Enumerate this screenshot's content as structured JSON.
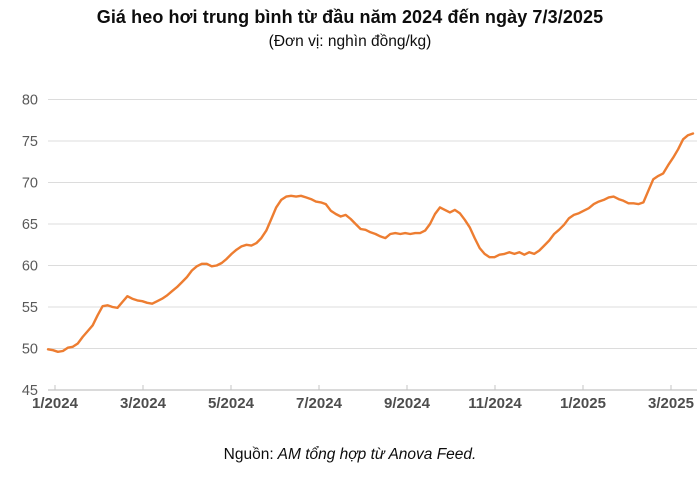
{
  "header": {
    "title": "Giá heo hơi trung bình từ đầu năm 2024 đến ngày 7/3/2025",
    "subtitle": "(Đơn vị: nghìn đồng/kg)"
  },
  "footer": {
    "label": "Nguồn:",
    "source": "AM tổng hợp từ Anova Feed."
  },
  "chart_data": {
    "type": "line",
    "title": "Giá heo hơi trung bình từ đầu năm 2024 đến ngày 7/3/2025",
    "unit": "nghìn đồng/kg",
    "period": {
      "from": "1/2024",
      "to": "7/3/2025"
    },
    "x_tick_labels": [
      "1/2024",
      "3/2024",
      "5/2024",
      "7/2024",
      "9/2024",
      "11/2024",
      "1/2025",
      "3/2025"
    ],
    "y_ticks": [
      45,
      50,
      55,
      60,
      65,
      70,
      75,
      80
    ],
    "ylim": [
      45,
      80
    ],
    "grid": "horizontal",
    "legend": "none",
    "line_color": "#ED7D31",
    "series": [
      {
        "name": "Giá heo hơi trung bình",
        "values": [
          49.9,
          49.8,
          49.6,
          49.7,
          50.1,
          50.2,
          50.6,
          51.4,
          52.1,
          52.8,
          54.0,
          55.1,
          55.2,
          55.0,
          54.9,
          55.6,
          56.3,
          56.0,
          55.8,
          55.7,
          55.5,
          55.4,
          55.7,
          56.0,
          56.4,
          56.9,
          57.4,
          58.0,
          58.6,
          59.4,
          59.9,
          60.2,
          60.2,
          59.9,
          60.0,
          60.3,
          60.8,
          61.4,
          61.9,
          62.3,
          62.5,
          62.4,
          62.7,
          63.3,
          64.2,
          65.6,
          67.0,
          67.9,
          68.3,
          68.4,
          68.3,
          68.4,
          68.2,
          68.0,
          67.7,
          67.6,
          67.4,
          66.6,
          66.2,
          65.9,
          66.1,
          65.6,
          65.0,
          64.4,
          64.3,
          64.0,
          63.8,
          63.5,
          63.3,
          63.8,
          63.9,
          63.8,
          63.9,
          63.8,
          63.9,
          63.9,
          64.2,
          65.0,
          66.2,
          67.0,
          66.7,
          66.4,
          66.7,
          66.3,
          65.5,
          64.6,
          63.3,
          62.1,
          61.4,
          61.0,
          61.0,
          61.3,
          61.4,
          61.6,
          61.4,
          61.6,
          61.3,
          61.6,
          61.4,
          61.8,
          62.4,
          63.0,
          63.8,
          64.3,
          64.9,
          65.7,
          66.1,
          66.3,
          66.6,
          66.9,
          67.4,
          67.7,
          67.9,
          68.2,
          68.3,
          68.0,
          67.8,
          67.5,
          67.5,
          67.4,
          67.6,
          69.0,
          70.4,
          70.8,
          71.1,
          72.1,
          73.0,
          74.0,
          75.2,
          75.7,
          75.9
        ]
      }
    ],
    "first_value": 49.9,
    "last_value": 75.9
  }
}
